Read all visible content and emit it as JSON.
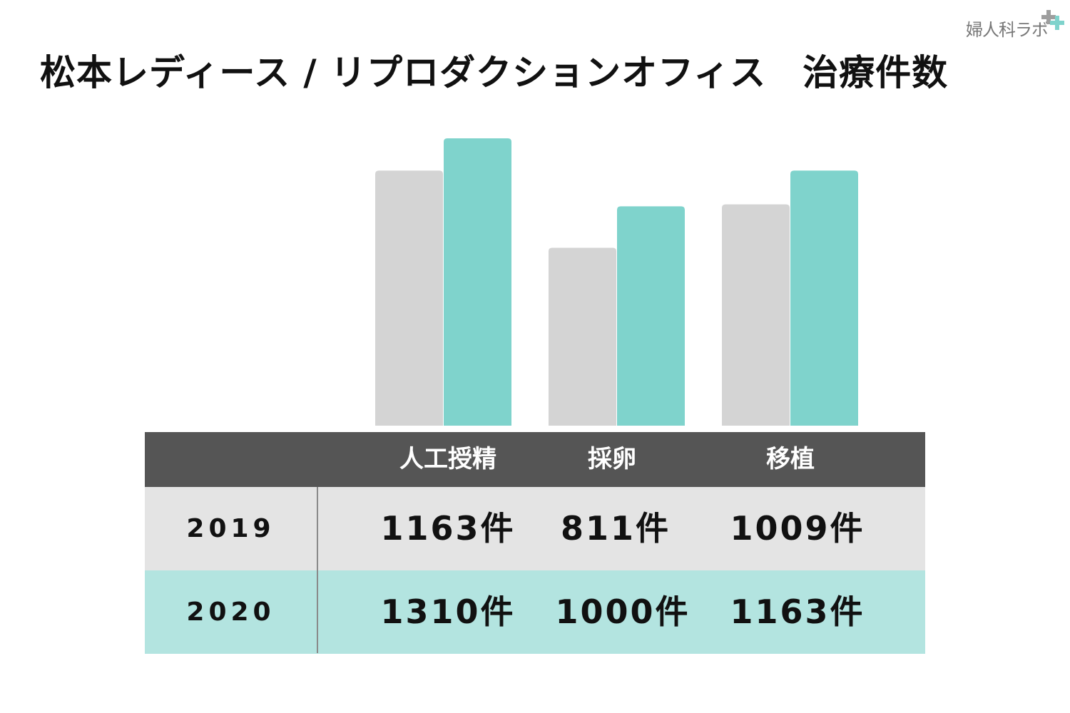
{
  "brand": {
    "logo_text": "婦人科ラボ",
    "plus_colors": [
      "#9e9e9e",
      "#7fd3cc"
    ]
  },
  "title": "松本レディース / リプロダクションオフィス　治療件数",
  "chart_data": {
    "type": "bar",
    "categories": [
      "人工授精",
      "採卵",
      "移植"
    ],
    "series": [
      {
        "name": "2019",
        "values": [
          1163,
          811,
          1009
        ],
        "color": "#d4d4d4"
      },
      {
        "name": "2020",
        "values": [
          1310,
          1000,
          1163
        ],
        "color": "#7fd3cc"
      }
    ],
    "ylim": [
      0,
      1310
    ],
    "grid": false,
    "legend": "none"
  },
  "table": {
    "headers": [
      "人工授精",
      "採卵",
      "移植"
    ],
    "rows": [
      {
        "year": "2019",
        "cells": [
          "1163件",
          "811件",
          "1009件"
        ]
      },
      {
        "year": "2020",
        "cells": [
          "1310件",
          "1000件",
          "1163件"
        ]
      }
    ],
    "colors": {
      "header_bg": "#555555",
      "row_2019_bg": "#e4e4e4",
      "row_2020_bg": "#b3e4e0"
    }
  }
}
